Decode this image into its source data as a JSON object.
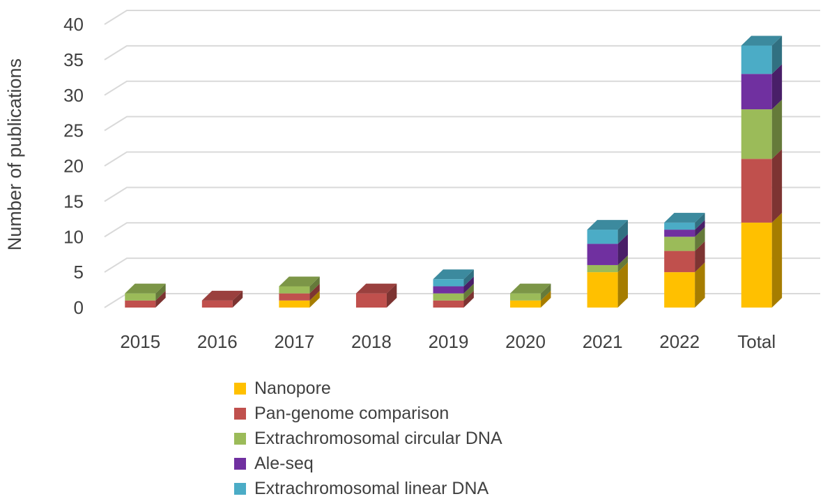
{
  "chart_data": {
    "type": "bar",
    "stacked": true,
    "style": "3d",
    "title": "",
    "xlabel": "",
    "ylabel": "Number of publications",
    "ylim": [
      0,
      40
    ],
    "yticks": [
      0,
      5,
      10,
      15,
      20,
      25,
      30,
      35,
      40
    ],
    "grid": true,
    "legend_position": "bottom",
    "categories": [
      "2015",
      "2016",
      "2017",
      "2018",
      "2019",
      "2020",
      "2021",
      "2022",
      "Total"
    ],
    "series": [
      {
        "name": "Nanopore",
        "color": "#ffc000",
        "values": [
          0,
          0,
          1,
          0,
          0,
          1,
          5,
          5,
          12
        ]
      },
      {
        "name": "Pan-genome comparison",
        "color": "#c0504d",
        "values": [
          1,
          1,
          1,
          2,
          1,
          0,
          0,
          3,
          9
        ]
      },
      {
        "name": "Extrachromosomal circular DNA",
        "color": "#9bbb59",
        "values": [
          1,
          0,
          1,
          0,
          1,
          1,
          1,
          2,
          7
        ]
      },
      {
        "name": "Ale-seq",
        "color": "#7030a0",
        "values": [
          0,
          0,
          0,
          0,
          1,
          0,
          3,
          1,
          5
        ]
      },
      {
        "name": "Extrachromosomal linear DNA",
        "color": "#4bacc6",
        "values": [
          0,
          0,
          0,
          0,
          1,
          0,
          2,
          1,
          4
        ]
      }
    ]
  }
}
